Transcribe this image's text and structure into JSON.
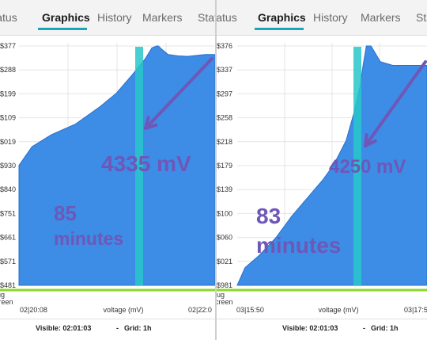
{
  "tabs": [
    "Status",
    "Graphics",
    "History",
    "Markers",
    "Status"
  ],
  "active_tab": "Graphics",
  "legend_label": [
    "lug",
    "creen"
  ],
  "colors": {
    "area": "#3d8ce6",
    "area_stroke": "#2a6fc9",
    "marker": "#27c7c9",
    "legend_line": "#8cd62a",
    "annotation": "#6f57b8",
    "accent": "#1aa5b8"
  },
  "chart_data": [
    {
      "type": "area",
      "xlabel": "voltage (mV)",
      "ylabel": "",
      "ytick_labels": [
        "$377",
        "$288",
        "$199",
        "$109",
        "$019",
        "$930",
        "$840",
        "$751",
        "$661",
        "$571",
        "$481"
      ],
      "xtick_labels": [
        "02|20:08",
        "02|22:0"
      ],
      "ylim": [
        3481,
        4377
      ],
      "x_minutes": [
        0,
        8,
        20,
        35,
        50,
        60,
        70,
        78,
        82,
        85,
        86,
        88,
        92,
        98,
        104,
        115,
        121
      ],
      "values": [
        3930,
        4000,
        4045,
        4085,
        4150,
        4200,
        4270,
        4330,
        4370,
        4377,
        4377,
        4365,
        4345,
        4340,
        4338,
        4345,
        4345
      ],
      "annotations": {
        "voltage": "4335 mV",
        "duration_number": "85",
        "duration_unit": "minutes"
      },
      "footer": {
        "visible": "Visible: 02:01:03",
        "separator": "-",
        "grid": "Grid: 1h"
      }
    },
    {
      "type": "area",
      "xlabel": "voltage (mV)",
      "ylabel": "",
      "ytick_labels": [
        "$376",
        "$337",
        "$297",
        "$258",
        "$218",
        "$179",
        "$139",
        "$100",
        "$060",
        "$021",
        "$981"
      ],
      "xtick_labels": [
        "03|15:50",
        "03|17:5"
      ],
      "ylim": [
        3981,
        4376
      ],
      "x_minutes": [
        0,
        5,
        14,
        25,
        35,
        45,
        55,
        62,
        70,
        75,
        79,
        81,
        83,
        86,
        92,
        100,
        115,
        122
      ],
      "values": [
        3981,
        4010,
        4030,
        4060,
        4095,
        4125,
        4155,
        4180,
        4220,
        4265,
        4310,
        4345,
        4376,
        4376,
        4350,
        4344,
        4344,
        4344
      ],
      "annotations": {
        "voltage": "4250 mV",
        "duration_number": "83",
        "duration_unit": "minutes"
      },
      "footer": {
        "visible": "Visible: 02:01:03",
        "separator": "-",
        "grid": "Grid: 1h"
      }
    }
  ]
}
